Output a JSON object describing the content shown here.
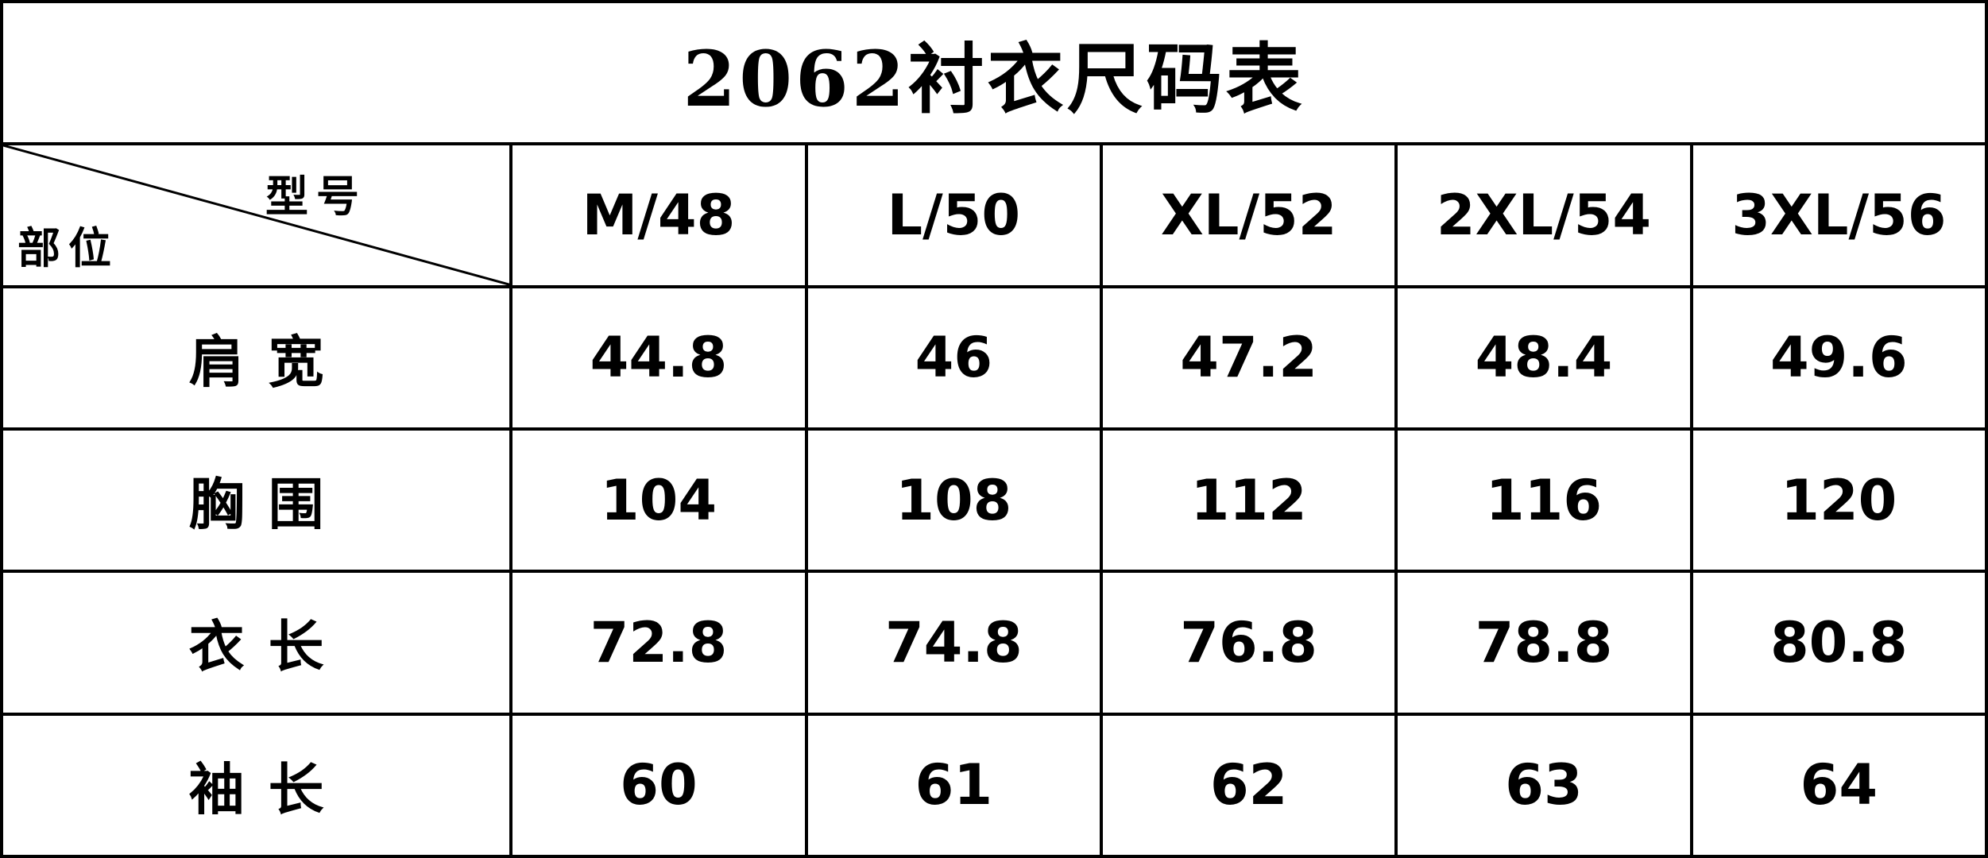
{
  "title": "2062衬衣尺码表",
  "table": {
    "corner": {
      "column_label": "型号",
      "row_label": "部位"
    },
    "columns": [
      "M/48",
      "L/50",
      "XL/52",
      "2XL/54",
      "3XL/56"
    ],
    "rows": [
      {
        "label": "肩宽",
        "values": [
          "44.8",
          "46",
          "47.2",
          "48.4",
          "49.6"
        ]
      },
      {
        "label": "胸围",
        "values": [
          "104",
          "108",
          "112",
          "116",
          "120"
        ]
      },
      {
        "label": "衣长",
        "values": [
          "72.8",
          "74.8",
          "76.8",
          "78.8",
          "80.8"
        ]
      },
      {
        "label": "袖长",
        "values": [
          "60",
          "61",
          "62",
          "63",
          "64"
        ]
      }
    ]
  }
}
